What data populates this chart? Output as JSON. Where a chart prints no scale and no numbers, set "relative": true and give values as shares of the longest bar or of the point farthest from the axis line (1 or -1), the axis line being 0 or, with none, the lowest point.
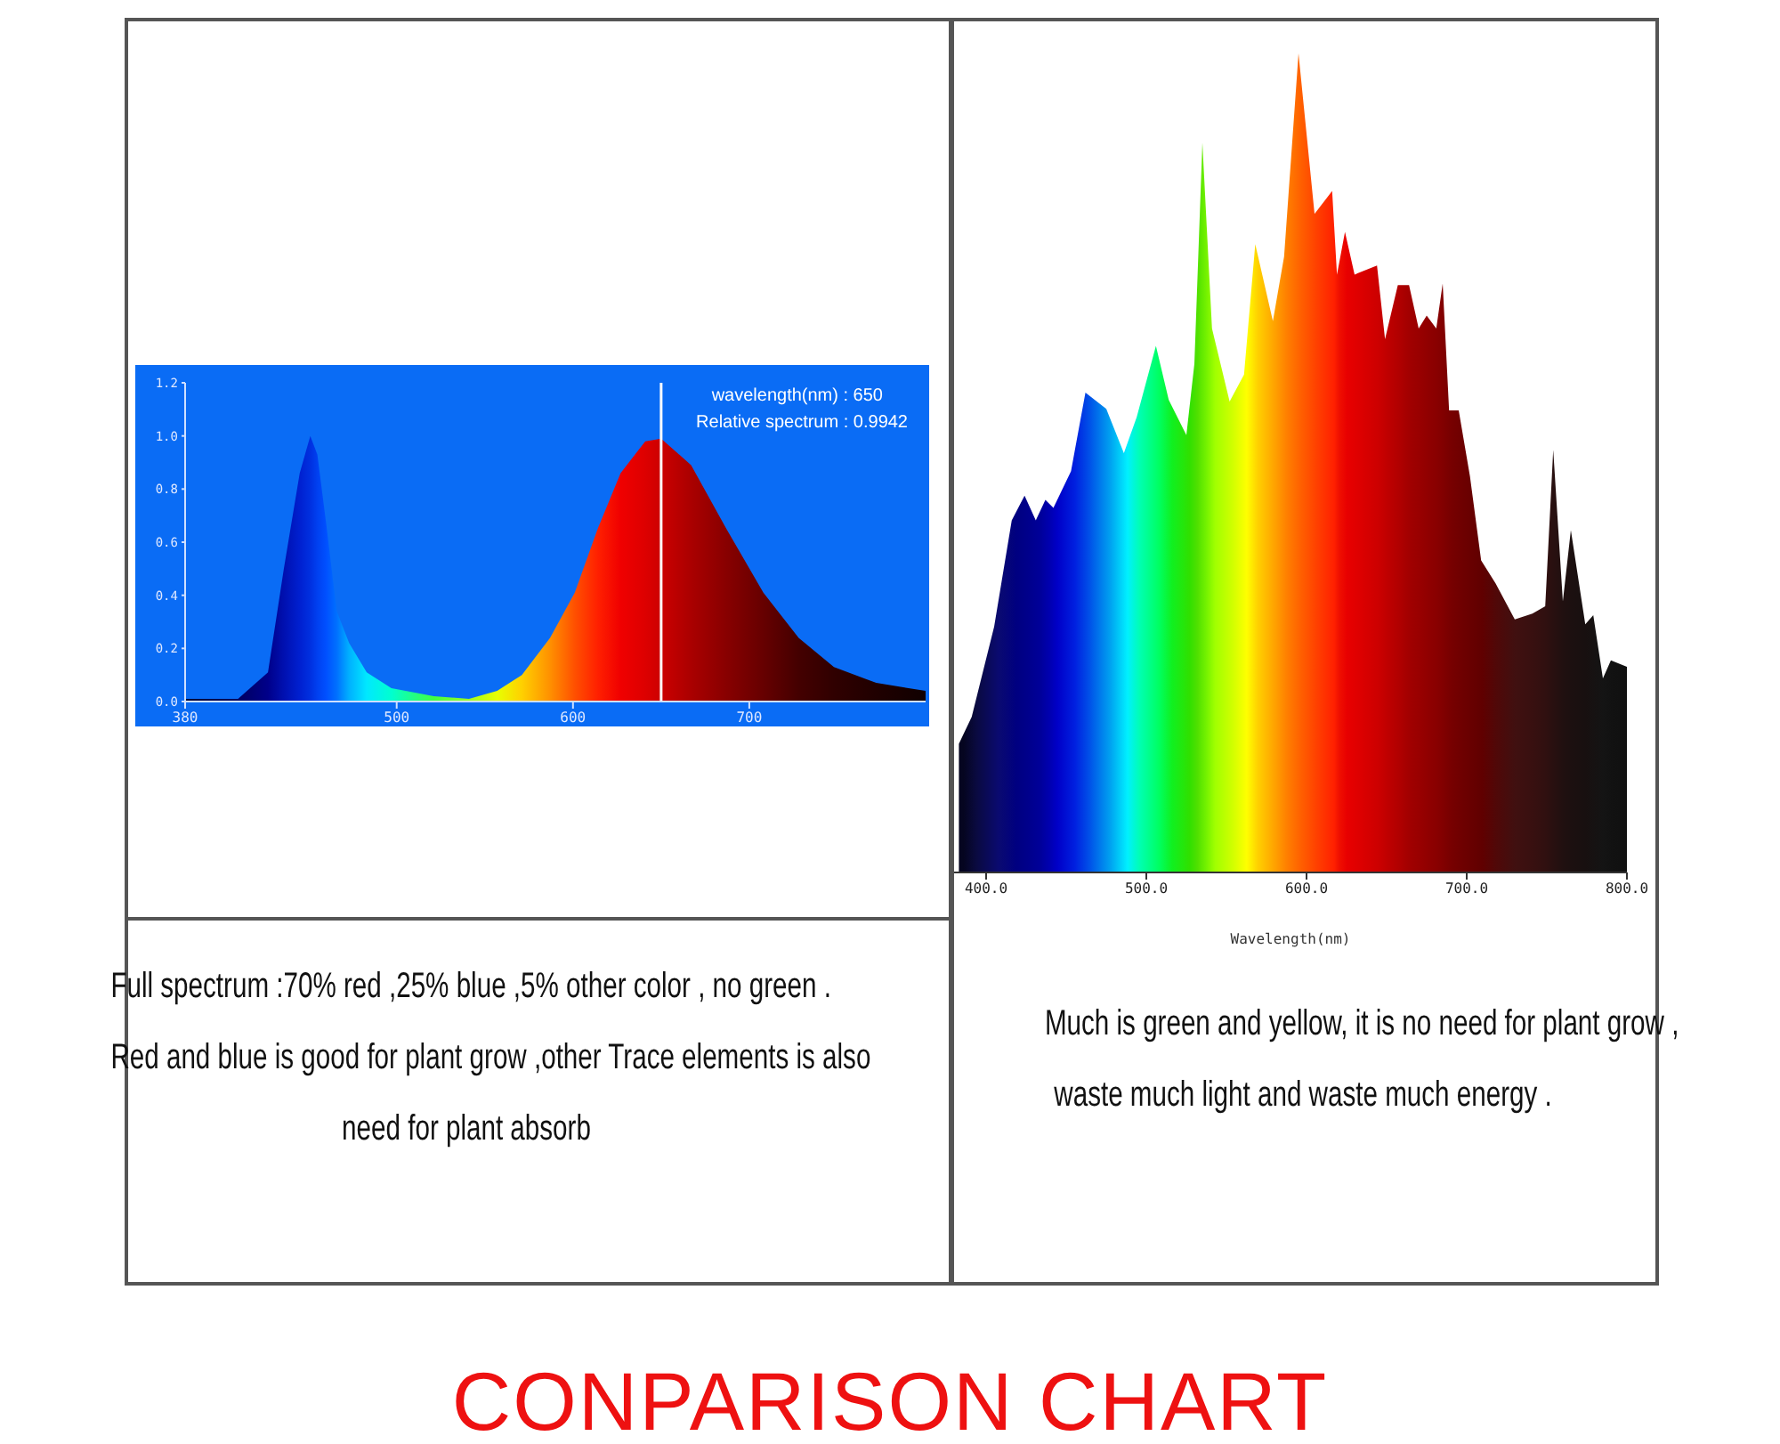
{
  "chart_data": [
    {
      "type": "area",
      "title": "CONPARISON CHART",
      "subtitle": "Full spectrum :70% red ,25% blue ,5% other color , no green .\nRed and blue is good for plant grow ,other Trace elements is also\nneed for plant absorb",
      "annotations": [
        "wavelength(nm) : 650",
        "Relative spectrum : 0.9942"
      ],
      "x": [
        380,
        410,
        427,
        436,
        445,
        451,
        455,
        460,
        466,
        473,
        483,
        497,
        521,
        541,
        557,
        571,
        587,
        601,
        614,
        627,
        641,
        650,
        667,
        687,
        708,
        728,
        748,
        772,
        800
      ],
      "series": [
        {
          "values": [
            0.01,
            0.01,
            0.11,
            0.5,
            0.86,
            1.0,
            0.93,
            0.67,
            0.34,
            0.22,
            0.11,
            0.05,
            0.02,
            0.01,
            0.04,
            0.1,
            0.24,
            0.41,
            0.65,
            0.86,
            0.98,
            0.99,
            0.89,
            0.65,
            0.41,
            0.24,
            0.13,
            0.07,
            0.04
          ],
          "colors": [
            "#000033",
            "#000060",
            "#00008a",
            "#0010b0",
            "#0020d0",
            "#0030e0",
            "#0040f0",
            "#0050ff",
            "#0070ff",
            "#00b0ff",
            "#00e8ff",
            "#00ffd0",
            "#40ff40",
            "#a0ff20",
            "#e8ff00",
            "#ffd000",
            "#ff9000",
            "#ff5000",
            "#ff2000",
            "#f00000",
            "#dd0000",
            "#cc0000",
            "#aa0000",
            "#880000",
            "#660000",
            "#440000",
            "#300000",
            "#200000",
            "#100000"
          ]
        }
      ],
      "xlim": [
        380,
        800
      ],
      "xticks": [
        380,
        500,
        600,
        700
      ],
      "ylim": [
        0,
        1.2
      ],
      "yticks": [
        {
          "value": 0,
          "label": "0.0"
        },
        {
          "value": 0.2,
          "label": "0.2"
        },
        {
          "value": 0.4,
          "label": "0.4"
        },
        {
          "value": 0.6,
          "label": "0.6"
        },
        {
          "value": 0.8,
          "label": "0.8"
        },
        {
          "value": 1,
          "label": "1.0"
        },
        {
          "value": 1.2,
          "label": "1.2"
        }
      ],
      "ref_lines": [
        {
          "axis": "x",
          "value": 650,
          "color": "#ffffff"
        }
      ],
      "grid": false
    },
    {
      "type": "area",
      "subtitle": "Much is green and yellow, it is no need for plant grow ,\nwaste much light and waste much energy .",
      "xlabel": "Wavelength(nm)",
      "relative": true,
      "tick_labels": "x",
      "x": [
        383,
        391,
        405,
        416,
        424,
        431,
        437,
        442,
        453,
        462,
        475,
        486,
        494,
        506,
        514,
        525,
        530,
        535,
        541,
        552,
        561,
        568,
        579,
        586,
        595,
        605,
        616,
        619,
        624,
        630,
        644,
        649,
        657,
        664,
        670,
        675,
        681,
        685,
        689,
        695,
        702,
        709,
        718,
        730,
        741,
        749,
        754,
        760,
        765,
        774,
        779,
        785,
        790,
        800
      ],
      "series": [
        {
          "values": [
            0.157,
            0.19,
            0.3,
            0.43,
            0.46,
            0.43,
            0.455,
            0.445,
            0.49,
            0.586,
            0.566,
            0.512,
            0.556,
            0.643,
            0.577,
            0.534,
            0.621,
            0.891,
            0.664,
            0.575,
            0.608,
            0.767,
            0.673,
            0.752,
            1,
            0.804,
            0.832,
            0.73,
            0.782,
            0.73,
            0.741,
            0.651,
            0.717,
            0.717,
            0.664,
            0.68,
            0.664,
            0.719,
            0.564,
            0.564,
            0.484,
            0.381,
            0.353,
            0.309,
            0.316,
            0.325,
            0.516,
            0.331,
            0.418,
            0.303,
            0.314,
            0.237,
            0.259,
            0.251
          ],
          "colors": [
            "#050520",
            "#0a0a40",
            "#0a0a70",
            "#000080",
            "#00008c",
            "#000099",
            "#0000b0",
            "#0000c8",
            "#0020e0",
            "#0050e8",
            "#00a0f0",
            "#00f0ff",
            "#00ffb0",
            "#00ff60",
            "#10f020",
            "#30e000",
            "#50e000",
            "#70f000",
            "#a0ff00",
            "#d0ff00",
            "#ffff00",
            "#ffd000",
            "#ffa000",
            "#ff8000",
            "#ff6000",
            "#ff4000",
            "#ff2000",
            "#f01000",
            "#e80000",
            "#e00000",
            "#cc0000",
            "#c00000",
            "#b00000",
            "#a00000",
            "#980000",
            "#900000",
            "#880000",
            "#800000",
            "#780000",
            "#700000",
            "#680000",
            "#600000",
            "#500808",
            "#401010",
            "#381010",
            "#301010",
            "#281010",
            "#201010",
            "#1c1010",
            "#181010",
            "#161212",
            "#141414",
            "#121212",
            "#101010"
          ]
        }
      ],
      "xlim": [
        380,
        800
      ],
      "xticks": [
        {
          "value": 400,
          "label": "400.0"
        },
        {
          "value": 500,
          "label": "500.0"
        },
        {
          "value": 600,
          "label": "600.0"
        },
        {
          "value": 700,
          "label": "700.0"
        },
        {
          "value": 800,
          "label": "800.0"
        }
      ],
      "grid": false
    }
  ]
}
